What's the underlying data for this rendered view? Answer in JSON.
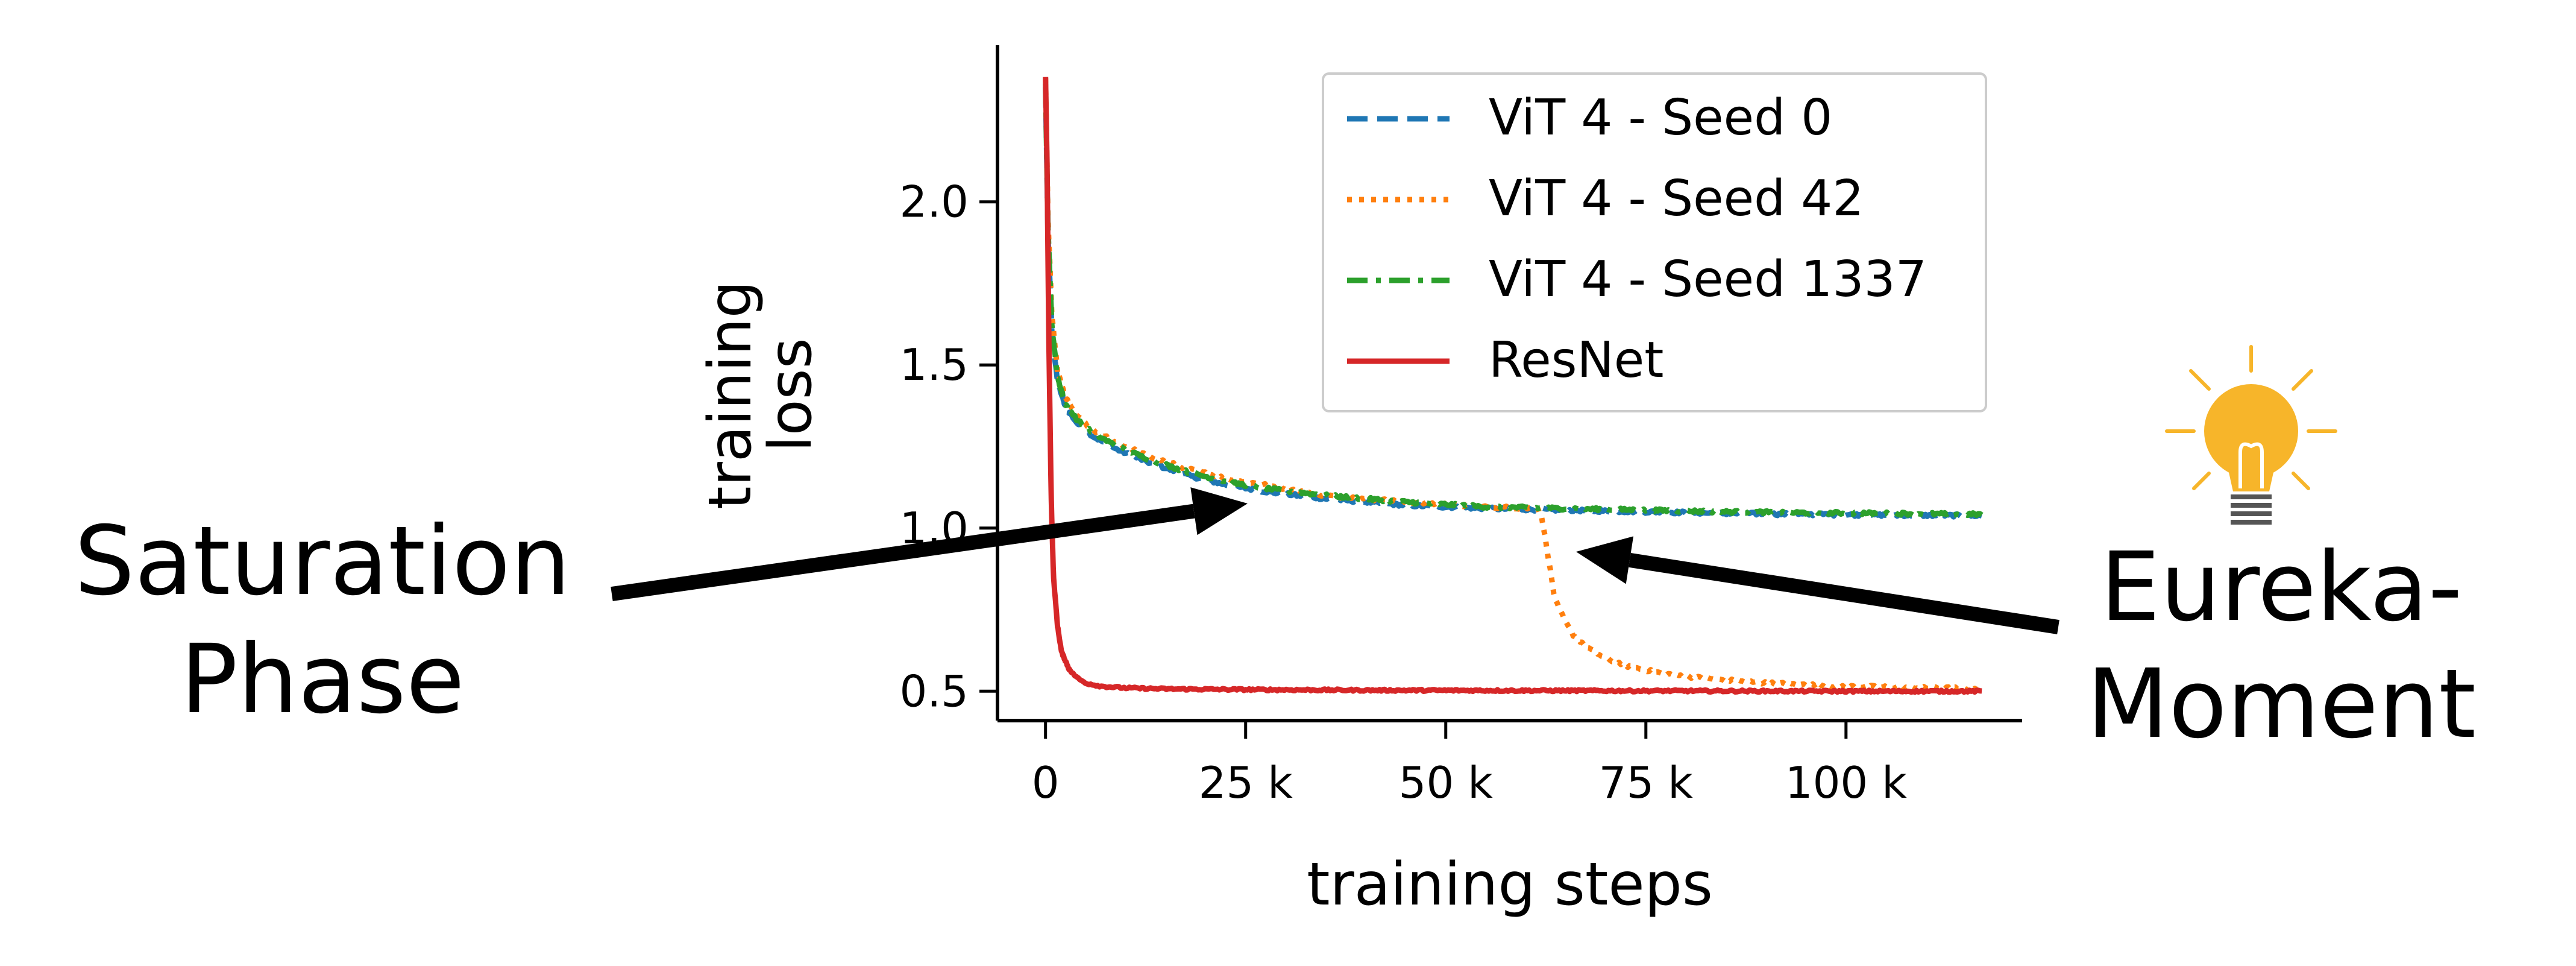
{
  "chart_data": {
    "type": "line",
    "xlabel": "training steps",
    "ylabel": "training\nloss",
    "xticks": [
      {
        "value": 0,
        "label": "0"
      },
      {
        "value": 25000,
        "label": "25 k"
      },
      {
        "value": 50000,
        "label": "50 k"
      },
      {
        "value": 75000,
        "label": "75 k"
      },
      {
        "value": 100000,
        "label": "100 k"
      }
    ],
    "yticks": [
      {
        "value": 0.5,
        "label": "0.5"
      },
      {
        "value": 1.0,
        "label": "1.0"
      },
      {
        "value": 1.5,
        "label": "1.5"
      },
      {
        "value": 2.0,
        "label": "2.0"
      }
    ],
    "xlim": [
      -6000,
      122000
    ],
    "ylim": [
      0.41,
      2.48
    ],
    "grid": false,
    "legend_position": "top-right",
    "series": [
      {
        "name": "ViT 4 - Seed 0",
        "color": "#1f77b4",
        "dash": "dashed",
        "x": [
          0,
          300,
          800,
          1500,
          2500,
          4000,
          6000,
          9000,
          13000,
          18000,
          23000,
          28000,
          35000,
          45000,
          55000,
          65000,
          75000,
          85000,
          95000,
          105000,
          117000
        ],
        "y": [
          2.35,
          1.9,
          1.6,
          1.45,
          1.37,
          1.32,
          1.28,
          1.24,
          1.2,
          1.16,
          1.13,
          1.11,
          1.09,
          1.07,
          1.06,
          1.055,
          1.05,
          1.045,
          1.042,
          1.04,
          1.038
        ]
      },
      {
        "name": "ViT 4 - Seed 42",
        "color": "#ff7f0e",
        "dash": "dotted",
        "x": [
          0,
          300,
          800,
          1500,
          2500,
          4000,
          6000,
          9000,
          13000,
          18000,
          23000,
          28000,
          35000,
          45000,
          55000,
          61500,
          62000,
          62500,
          63000,
          63500,
          64000,
          65000,
          66000,
          68000,
          70000,
          73000,
          77000,
          82000,
          90000,
          100000,
          110000,
          117000
        ],
        "y": [
          2.38,
          1.95,
          1.65,
          1.48,
          1.4,
          1.34,
          1.3,
          1.26,
          1.22,
          1.18,
          1.15,
          1.13,
          1.1,
          1.08,
          1.065,
          1.06,
          1.03,
          0.96,
          0.88,
          0.8,
          0.76,
          0.71,
          0.67,
          0.63,
          0.6,
          0.575,
          0.555,
          0.54,
          0.525,
          0.515,
          0.51,
          0.508
        ]
      },
      {
        "name": "ViT 4 - Seed 1337",
        "color": "#2ca02c",
        "dash": "dashdot",
        "x": [
          0,
          300,
          800,
          1500,
          2500,
          4000,
          6000,
          9000,
          13000,
          18000,
          23000,
          28000,
          35000,
          45000,
          55000,
          65000,
          75000,
          85000,
          95000,
          105000,
          117000
        ],
        "y": [
          2.36,
          1.92,
          1.62,
          1.46,
          1.38,
          1.33,
          1.29,
          1.25,
          1.21,
          1.17,
          1.14,
          1.12,
          1.1,
          1.08,
          1.065,
          1.06,
          1.055,
          1.05,
          1.047,
          1.045,
          1.042
        ]
      },
      {
        "name": "ResNet",
        "color": "#d62728",
        "dash": "solid",
        "x": [
          0,
          200,
          400,
          700,
          1000,
          1500,
          2000,
          3000,
          4000,
          5000,
          7000,
          10000,
          15000,
          25000,
          40000,
          60000,
          80000,
          100000,
          117000
        ],
        "y": [
          2.38,
          2.1,
          1.6,
          1.1,
          0.85,
          0.7,
          0.62,
          0.565,
          0.54,
          0.525,
          0.515,
          0.51,
          0.507,
          0.505,
          0.503,
          0.502,
          0.501,
          0.5,
          0.5
        ]
      }
    ]
  },
  "annotations": {
    "left_text": [
      "Saturation",
      "Phase"
    ],
    "right_text": [
      "Eureka-",
      "Moment"
    ],
    "icon": "lightbulb-icon",
    "arrow_color": "#000000",
    "bulb_color": "#f7b52a"
  }
}
